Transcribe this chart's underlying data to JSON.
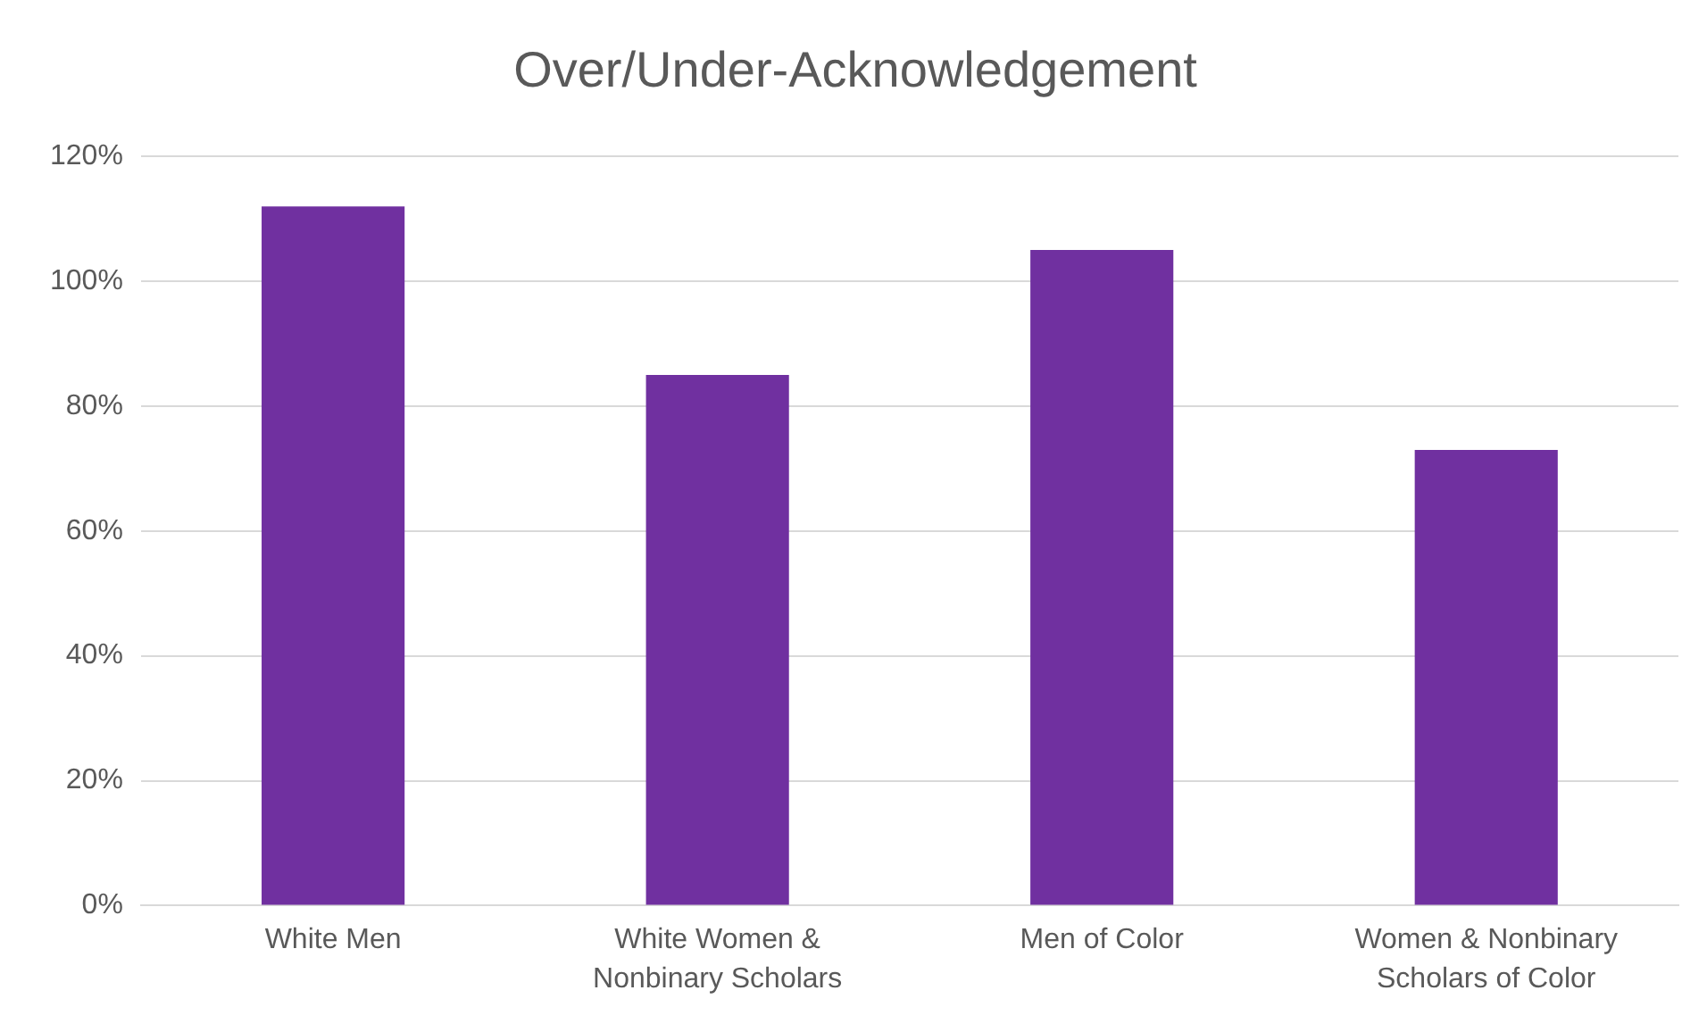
{
  "chart_data": {
    "type": "bar",
    "title": "Over/Under-Acknowledgement",
    "categories": [
      "White Men",
      "White Women & Nonbinary Scholars",
      "Men of Color",
      "Women & Nonbinary Scholars of Color"
    ],
    "values": [
      112,
      85,
      105,
      73
    ],
    "color": "#7030a0",
    "ylim": [
      0,
      120
    ],
    "yticks": [
      {
        "value": 0,
        "label": "0%"
      },
      {
        "value": 20,
        "label": "20%"
      },
      {
        "value": 40,
        "label": "40%"
      },
      {
        "value": 60,
        "label": "60%"
      },
      {
        "value": 80,
        "label": "80%"
      },
      {
        "value": 100,
        "label": "100%"
      },
      {
        "value": 120,
        "label": "120%"
      }
    ],
    "grid": "y",
    "legend": false
  }
}
